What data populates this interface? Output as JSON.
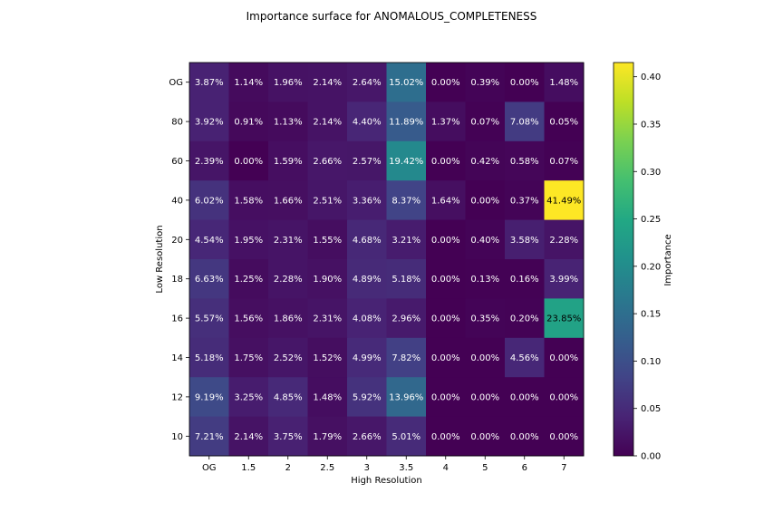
{
  "chart_data": {
    "type": "heatmap",
    "title": "Importance surface for ANOMALOUS_COMPLETENESS",
    "xlabel": "High Resolution",
    "ylabel": "Low Resolution",
    "x_categories": [
      "OG",
      "1.5",
      "2",
      "2.5",
      "3",
      "3.5",
      "4",
      "5",
      "6",
      "7"
    ],
    "y_categories": [
      "OG",
      "80",
      "60",
      "40",
      "20",
      "18",
      "16",
      "14",
      "12",
      "10"
    ],
    "values": [
      [
        0.0387,
        0.0114,
        0.0196,
        0.0214,
        0.0264,
        0.1502,
        0.0,
        0.0039,
        0.0,
        0.0148
      ],
      [
        0.0392,
        0.0091,
        0.0113,
        0.0214,
        0.044,
        0.1189,
        0.0137,
        0.0007,
        0.0708,
        0.0005
      ],
      [
        0.0239,
        0.0,
        0.0159,
        0.0266,
        0.0257,
        0.1942,
        0.0,
        0.0042,
        0.0058,
        0.0007
      ],
      [
        0.0602,
        0.0158,
        0.0166,
        0.0251,
        0.0336,
        0.0837,
        0.0164,
        0.0,
        0.0037,
        0.4149
      ],
      [
        0.0454,
        0.0195,
        0.0231,
        0.0155,
        0.0468,
        0.0321,
        0.0,
        0.004,
        0.0358,
        0.0228
      ],
      [
        0.0663,
        0.0125,
        0.0228,
        0.019,
        0.0489,
        0.0518,
        0.0,
        0.0013,
        0.0016,
        0.0399
      ],
      [
        0.0557,
        0.0156,
        0.0186,
        0.0231,
        0.0408,
        0.0296,
        0.0,
        0.0035,
        0.002,
        0.2385
      ],
      [
        0.0518,
        0.0175,
        0.0252,
        0.0152,
        0.0499,
        0.0782,
        0.0,
        0.0,
        0.0456,
        0.0
      ],
      [
        0.0919,
        0.0325,
        0.0485,
        0.0148,
        0.0592,
        0.1396,
        0.0,
        0.0,
        0.0,
        0.0
      ],
      [
        0.0721,
        0.0214,
        0.0375,
        0.0179,
        0.0266,
        0.0501,
        0.0,
        0.0,
        0.0,
        0.0
      ]
    ],
    "cell_labels": [
      [
        "3.87%",
        "1.14%",
        "1.96%",
        "2.14%",
        "2.64%",
        "15.02%",
        "0.00%",
        "0.39%",
        "0.00%",
        "1.48%"
      ],
      [
        "3.92%",
        "0.91%",
        "1.13%",
        "2.14%",
        "4.40%",
        "11.89%",
        "1.37%",
        "0.07%",
        "7.08%",
        "0.05%"
      ],
      [
        "2.39%",
        "0.00%",
        "1.59%",
        "2.66%",
        "2.57%",
        "19.42%",
        "0.00%",
        "0.42%",
        "0.58%",
        "0.07%"
      ],
      [
        "6.02%",
        "1.58%",
        "1.66%",
        "2.51%",
        "3.36%",
        "8.37%",
        "1.64%",
        "0.00%",
        "0.37%",
        "41.49%"
      ],
      [
        "4.54%",
        "1.95%",
        "2.31%",
        "1.55%",
        "4.68%",
        "3.21%",
        "0.00%",
        "0.40%",
        "3.58%",
        "2.28%"
      ],
      [
        "6.63%",
        "1.25%",
        "2.28%",
        "1.90%",
        "4.89%",
        "5.18%",
        "0.00%",
        "0.13%",
        "0.16%",
        "3.99%"
      ],
      [
        "5.57%",
        "1.56%",
        "1.86%",
        "2.31%",
        "4.08%",
        "2.96%",
        "0.00%",
        "0.35%",
        "0.20%",
        "23.85%"
      ],
      [
        "5.18%",
        "1.75%",
        "2.52%",
        "1.52%",
        "4.99%",
        "7.82%",
        "0.00%",
        "0.00%",
        "4.56%",
        "0.00%"
      ],
      [
        "9.19%",
        "3.25%",
        "4.85%",
        "1.48%",
        "5.92%",
        "13.96%",
        "0.00%",
        "0.00%",
        "0.00%",
        "0.00%"
      ],
      [
        "7.21%",
        "2.14%",
        "3.75%",
        "1.79%",
        "2.66%",
        "5.01%",
        "0.00%",
        "0.00%",
        "0.00%",
        "0.00%"
      ]
    ],
    "colorbar": {
      "label": "Importance",
      "range": [
        0,
        0.415
      ],
      "ticks": [
        0.0,
        0.05,
        0.1,
        0.15,
        0.2,
        0.25,
        0.3,
        0.35,
        0.4
      ],
      "tick_labels": [
        "0.00",
        "0.05",
        "0.10",
        "0.15",
        "0.20",
        "0.25",
        "0.30",
        "0.35",
        "0.40"
      ],
      "colormap": "viridis"
    },
    "grid": false,
    "legend": "none"
  }
}
